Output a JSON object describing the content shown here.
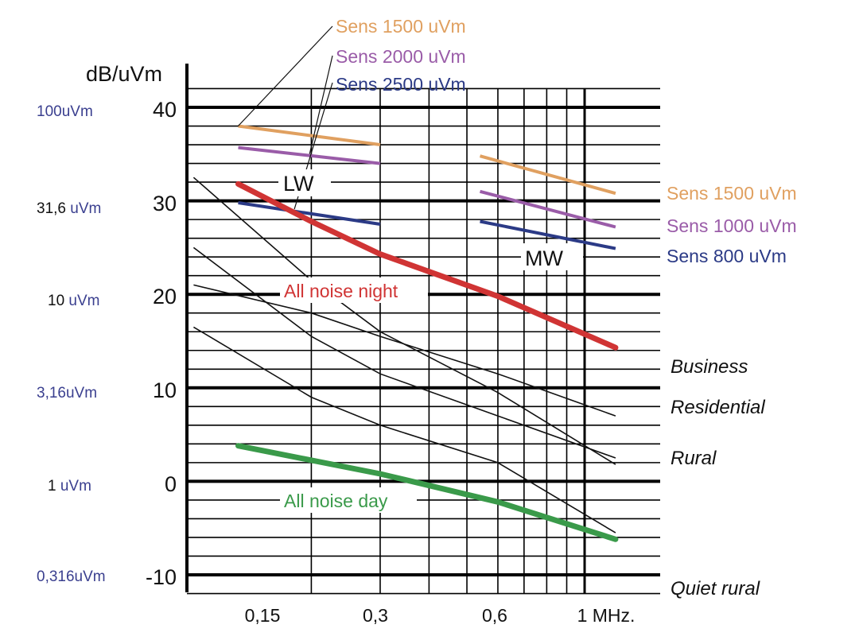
{
  "chart_data": {
    "type": "line",
    "y_unit_label": "dB/uVm",
    "x_unit_suffix": "1 MHz.",
    "x_scale": "log",
    "xlim": [
      0.1,
      1.2
    ],
    "ylim": [
      -12,
      42
    ],
    "grid": true,
    "y_ticks": [
      40,
      30,
      20,
      10,
      0,
      -10
    ],
    "y_tick_labels": [
      "40",
      "30",
      "20",
      "10",
      "0",
      "-10"
    ],
    "x_ticks": [
      0.15,
      0.3,
      0.6,
      1.0
    ],
    "x_tick_labels": [
      "0,15",
      "0,3",
      "0,6",
      "1 MHz."
    ],
    "uvm_scale": [
      {
        "db": 40,
        "label": "100uVm",
        "color": "#3a3f8f"
      },
      {
        "db": 30,
        "label_a": "31,6",
        "label_b": "uVm",
        "color": "#3a3f8f"
      },
      {
        "db": 20,
        "label_a": "10",
        "label_b": "uVm",
        "color": "#3a3f8f"
      },
      {
        "db": 10,
        "label": "3,16uVm",
        "color": "#3a3f8f"
      },
      {
        "db": 0,
        "label_a": "1",
        "label_b": "uVm",
        "color": "#3a3f8f"
      },
      {
        "db": -10,
        "label": "0,316uVm",
        "color": "#3a3f8f"
      }
    ],
    "band_labels": {
      "lw": "LW",
      "mw": "MW"
    },
    "sensitivity_lines": {
      "lw": [
        {
          "label": "Sens 1500 uVm",
          "color": "#e0a060",
          "x": [
            0.13,
            0.3
          ],
          "y": [
            38.0,
            36.0
          ]
        },
        {
          "label": "Sens 2000 uVm",
          "color": "#9a5ca8",
          "x": [
            0.13,
            0.3
          ],
          "y": [
            35.7,
            34.0
          ]
        },
        {
          "label": "Sens 2500 uVm",
          "color": "#2b3a86",
          "x": [
            0.13,
            0.3
          ],
          "y": [
            29.8,
            27.5
          ]
        }
      ],
      "mw": [
        {
          "label": "Sens 1500 uVm",
          "color": "#e0a060",
          "x": [
            0.54,
            1.2
          ],
          "y": [
            34.8,
            30.8
          ]
        },
        {
          "label": "Sens 1000 uVm",
          "color": "#9a5ca8",
          "x": [
            0.54,
            1.2
          ],
          "y": [
            31.0,
            27.2
          ]
        },
        {
          "label": "Sens 800 uVm",
          "color": "#2b3a86",
          "x": [
            0.54,
            1.2
          ],
          "y": [
            27.8,
            24.9
          ]
        }
      ]
    },
    "noise_lines": [
      {
        "label": "All noise night",
        "color": "#d03434",
        "x": [
          0.13,
          0.2,
          0.3,
          0.6,
          1.2
        ],
        "y": [
          31.8,
          27.8,
          24.3,
          19.8,
          14.3
        ]
      },
      {
        "label": "All noise day",
        "color": "#3a9a4a",
        "x": [
          0.13,
          0.3,
          0.6,
          1.2
        ],
        "y": [
          3.8,
          0.8,
          -2.2,
          -6.2
        ]
      }
    ],
    "environment_curves": [
      {
        "label": "Business",
        "x": [
          0.1,
          0.2,
          0.3,
          0.6,
          1.2
        ],
        "y": [
          25.0,
          15.5,
          11.5,
          7.0,
          2.5
        ]
      },
      {
        "label": "Residential",
        "x": [
          0.1,
          0.2,
          0.3,
          0.6,
          1.2
        ],
        "y": [
          16.5,
          9.0,
          6.0,
          2.0,
          -5.5
        ]
      },
      {
        "label": "Rural",
        "x": [
          0.1,
          0.2,
          0.3,
          0.6,
          1.2
        ],
        "y": [
          32.5,
          21.5,
          16.0,
          9.5,
          1.8
        ]
      },
      {
        "label": "Quiet rural",
        "x": [
          0.1,
          0.2,
          0.3,
          0.6,
          1.2
        ],
        "y": [
          21.0,
          18.0,
          15.5,
          11.5,
          7.0
        ]
      }
    ]
  }
}
